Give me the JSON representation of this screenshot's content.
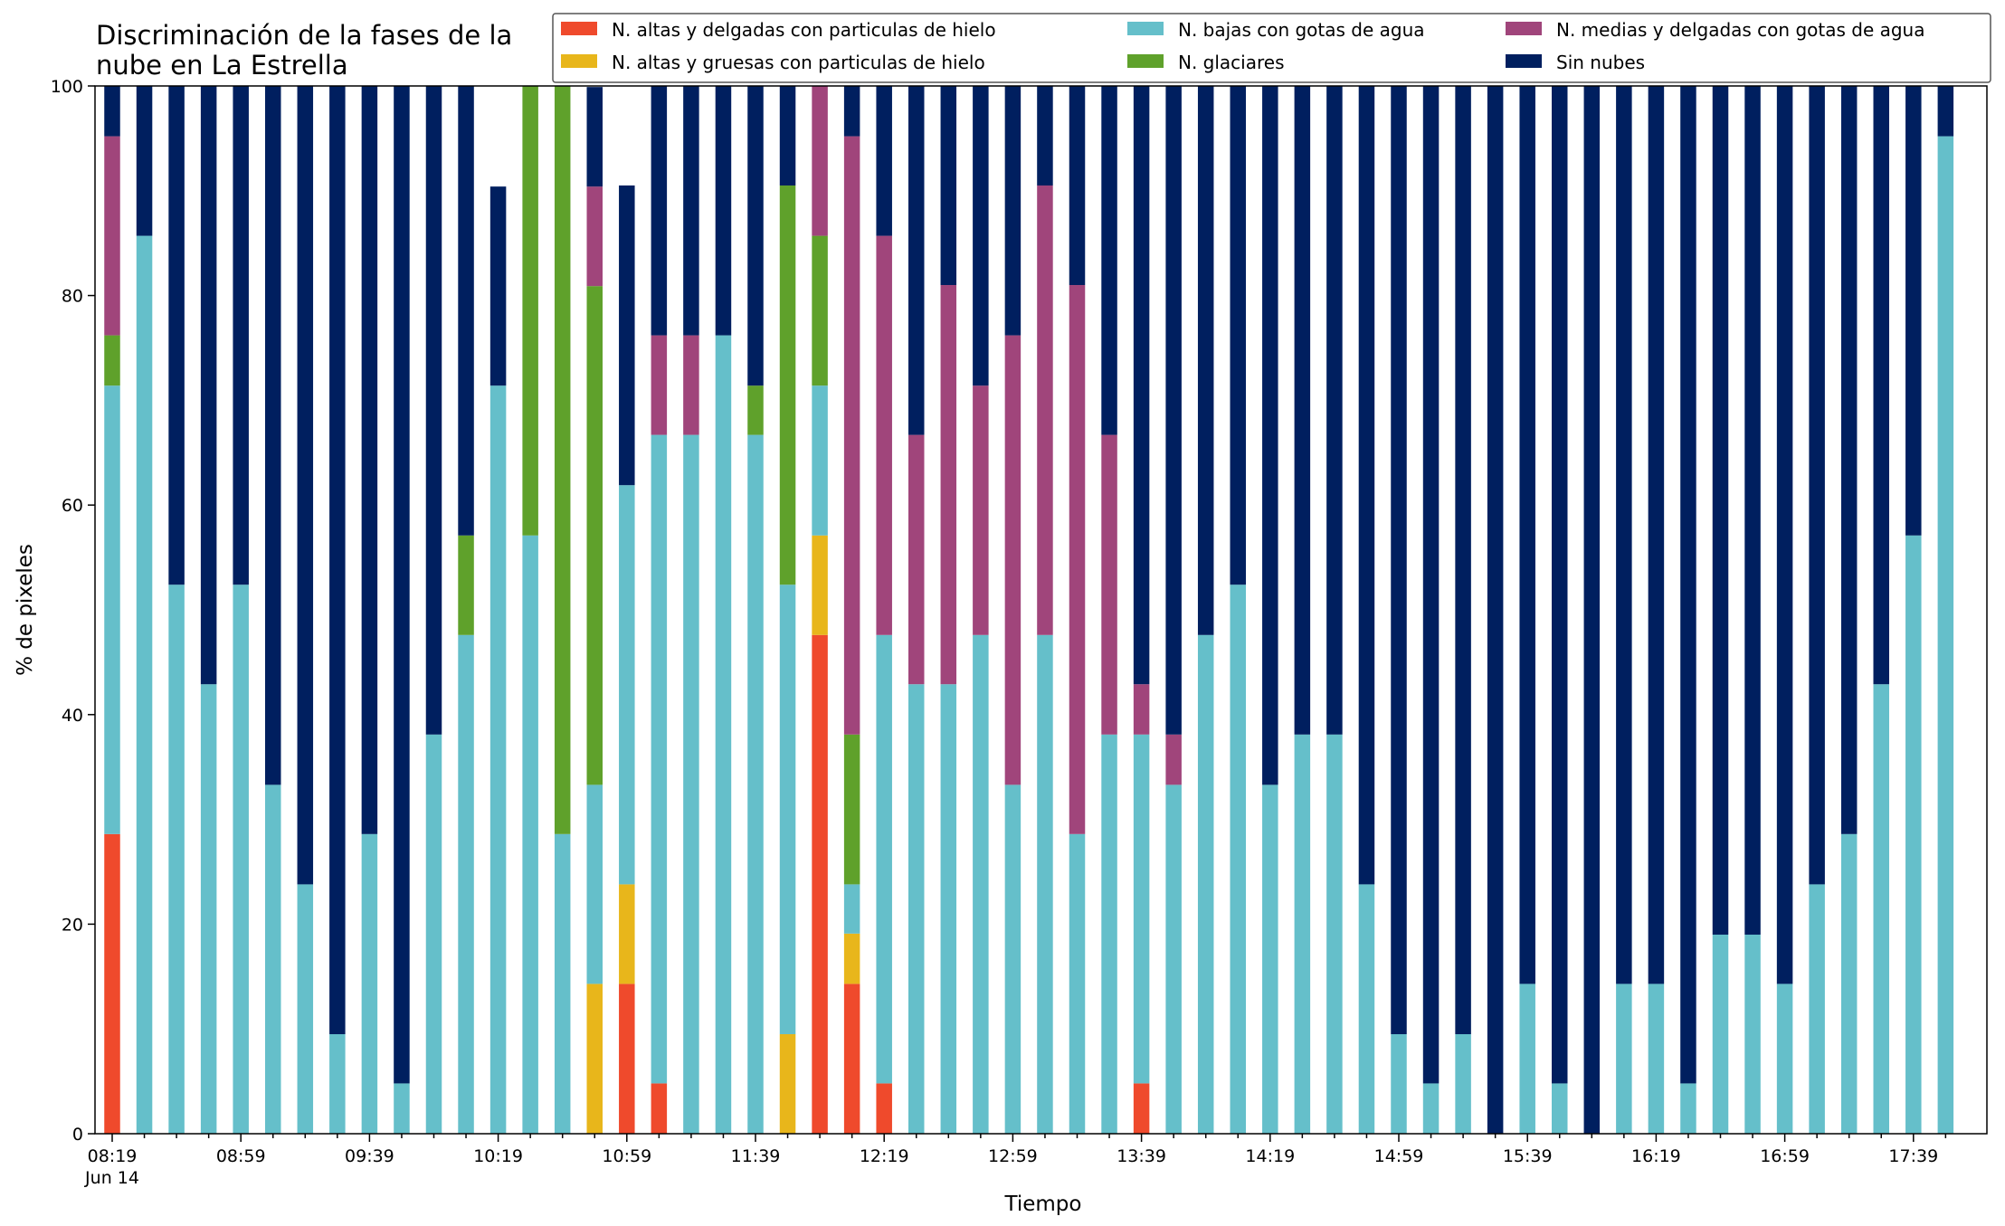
{
  "chart_data": {
    "type": "bar",
    "stacked": true,
    "title": "Discriminación de la fases de la\nnube en La Estrella",
    "xlabel": "Tiempo",
    "ylabel": "% de pixeles",
    "ylim": [
      0,
      100
    ],
    "yticks": [
      0,
      20,
      40,
      60,
      80,
      100
    ],
    "legend": {
      "placement": "top-right",
      "columns": 3
    },
    "date_label": "Jun 14",
    "categories": [
      "08:19",
      "08:29",
      "08:39",
      "08:49",
      "08:59",
      "09:09",
      "09:19",
      "09:29",
      "09:39",
      "09:49",
      "09:59",
      "10:09",
      "10:19",
      "10:29",
      "10:39",
      "10:49",
      "10:59",
      "11:09",
      "11:19",
      "11:29",
      "11:39",
      "11:49",
      "11:59",
      "12:09",
      "12:19",
      "12:29",
      "12:39",
      "12:49",
      "12:59",
      "13:09",
      "13:19",
      "13:29",
      "13:39",
      "13:49",
      "13:59",
      "14:09",
      "14:19",
      "14:29",
      "14:39",
      "14:49",
      "14:59",
      "15:09",
      "15:19",
      "15:29",
      "15:39",
      "15:49",
      "15:59",
      "16:09",
      "16:19",
      "16:29",
      "16:39",
      "16:49",
      "16:59",
      "17:09",
      "17:19",
      "17:29",
      "17:39",
      "17:49"
    ],
    "tick_labels": [
      "08:19",
      "08:59",
      "09:39",
      "10:19",
      "10:59",
      "11:39",
      "12:19",
      "12:59",
      "13:39",
      "14:19",
      "14:59",
      "15:39",
      "16:19",
      "16:59",
      "17:39"
    ],
    "series": [
      {
        "name": "N. altas y delgadas con particulas de hielo",
        "color": "#ef4a2c",
        "values": [
          28.6,
          0,
          0,
          0,
          0,
          0,
          0,
          0,
          0,
          0,
          0,
          0,
          0,
          0,
          0,
          0,
          14.3,
          4.8,
          0,
          0,
          0,
          0,
          47.6,
          14.3,
          4.8,
          0,
          0,
          0,
          0,
          0,
          0,
          0,
          4.8,
          0,
          0,
          0,
          0,
          0,
          0,
          0,
          0,
          0,
          0,
          0,
          0,
          0,
          0,
          0,
          0,
          0,
          0,
          0,
          0,
          0,
          0,
          0,
          0,
          0
        ]
      },
      {
        "name": "N. altas y gruesas con particulas de hielo",
        "color": "#e8b61b",
        "values": [
          0,
          0,
          0,
          0,
          0,
          0,
          0,
          0,
          0,
          0,
          0,
          0,
          0,
          0,
          0,
          14.3,
          9.5,
          0,
          0,
          0,
          0,
          9.5,
          9.5,
          4.8,
          0,
          0,
          0,
          0,
          0,
          0,
          0,
          0,
          0,
          0,
          0,
          0,
          0,
          0,
          0,
          0,
          0,
          0,
          0,
          0,
          0,
          0,
          0,
          0,
          0,
          0,
          0,
          0,
          0,
          0,
          0,
          0,
          0,
          0
        ]
      },
      {
        "name": "N. bajas con gotas de agua",
        "color": "#65bfca",
        "values": [
          42.8,
          85.7,
          52.4,
          42.9,
          52.4,
          33.3,
          23.8,
          9.5,
          28.6,
          4.8,
          38.1,
          47.6,
          71.4,
          57.1,
          28.6,
          19.0,
          38.1,
          61.9,
          66.7,
          76.2,
          66.7,
          42.9,
          14.3,
          4.7,
          42.8,
          42.9,
          42.9,
          47.6,
          33.3,
          47.6,
          28.6,
          38.1,
          33.3,
          33.3,
          47.6,
          52.4,
          33.3,
          38.1,
          38.1,
          23.8,
          9.5,
          4.8,
          9.5,
          0,
          14.3,
          4.8,
          0,
          14.3,
          14.3,
          4.8,
          19.0,
          19.0,
          14.3,
          23.8,
          28.6,
          42.9,
          57.1,
          95.2
        ]
      },
      {
        "name": "N. glaciares",
        "color": "#5fa12b",
        "values": [
          4.8,
          0,
          0,
          0,
          0,
          0,
          0,
          0,
          0,
          0,
          0,
          9.5,
          0,
          42.9,
          71.4,
          47.6,
          0,
          0,
          0,
          0,
          4.7,
          38.1,
          14.3,
          14.3,
          0,
          0,
          0,
          0,
          0,
          0,
          0,
          0,
          0,
          0,
          0,
          0,
          0,
          0,
          0,
          0,
          0,
          0,
          0,
          0,
          0,
          0,
          0,
          0,
          0,
          0,
          0,
          0,
          0,
          0,
          0,
          0,
          0,
          0
        ]
      },
      {
        "name": "N. medias y delgadas con gotas de agua",
        "color": "#a0457b",
        "values": [
          19.0,
          0,
          0,
          0,
          0,
          0,
          0,
          0,
          0,
          0,
          0,
          0,
          0,
          0,
          0,
          9.5,
          0,
          9.5,
          9.5,
          0,
          0,
          0,
          14.3,
          57.1,
          38.1,
          23.8,
          38.1,
          23.8,
          42.9,
          42.9,
          52.4,
          28.6,
          4.8,
          4.8,
          0,
          0,
          0,
          0,
          0,
          0,
          0,
          0,
          0,
          0,
          0,
          0,
          0,
          0,
          0,
          0,
          0,
          0,
          0,
          0,
          0,
          0,
          0,
          0
        ]
      },
      {
        "name": "Sin nubes",
        "color": "#001f5f",
        "values": [
          4.8,
          14.3,
          47.6,
          57.1,
          47.6,
          66.7,
          76.2,
          90.5,
          71.4,
          95.2,
          61.9,
          52.4,
          19.0,
          0,
          0,
          9.5,
          28.6,
          23.8,
          23.8,
          23.8,
          28.6,
          9.5,
          0,
          4.8,
          14.3,
          33.3,
          19.0,
          28.6,
          23.8,
          9.5,
          19.0,
          33.3,
          57.1,
          61.9,
          52.4,
          47.6,
          66.7,
          61.9,
          61.9,
          76.2,
          90.5,
          95.2,
          90.5,
          100,
          85.7,
          95.2,
          100,
          85.7,
          85.7,
          95.2,
          81.0,
          81.0,
          85.7,
          76.2,
          71.4,
          57.1,
          42.9,
          4.8
        ]
      }
    ]
  }
}
